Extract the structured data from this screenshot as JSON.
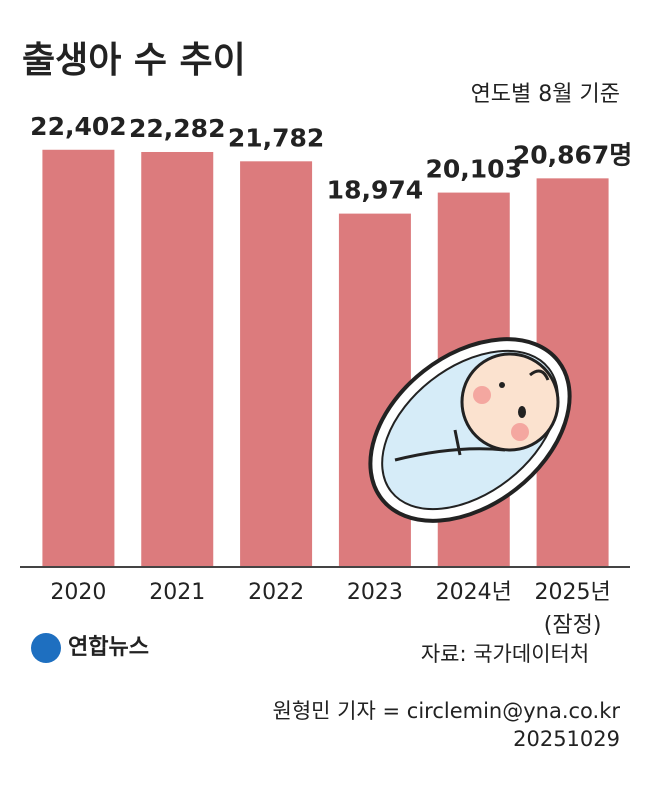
{
  "chart_data": {
    "type": "bar",
    "title": "출생아 수 추이",
    "subtitle": "연도별 8월 기준",
    "categories": [
      "2020",
      "2021",
      "2022",
      "2023",
      "2024년",
      "2025년"
    ],
    "category_note": "(잠정)",
    "values": [
      22402,
      22282,
      21782,
      18974,
      20103,
      20867
    ],
    "value_labels": [
      "22,402",
      "22,282",
      "21,782",
      "18,974",
      "20,103",
      "20,867명"
    ],
    "color": "#dc7b7d",
    "ylim": [
      0,
      24000
    ],
    "logo": "연합뉴스",
    "source": "자료: 국가데이터처",
    "credit": "원형민 기자 = circlemin@yna.co.kr",
    "date": "20251029"
  }
}
